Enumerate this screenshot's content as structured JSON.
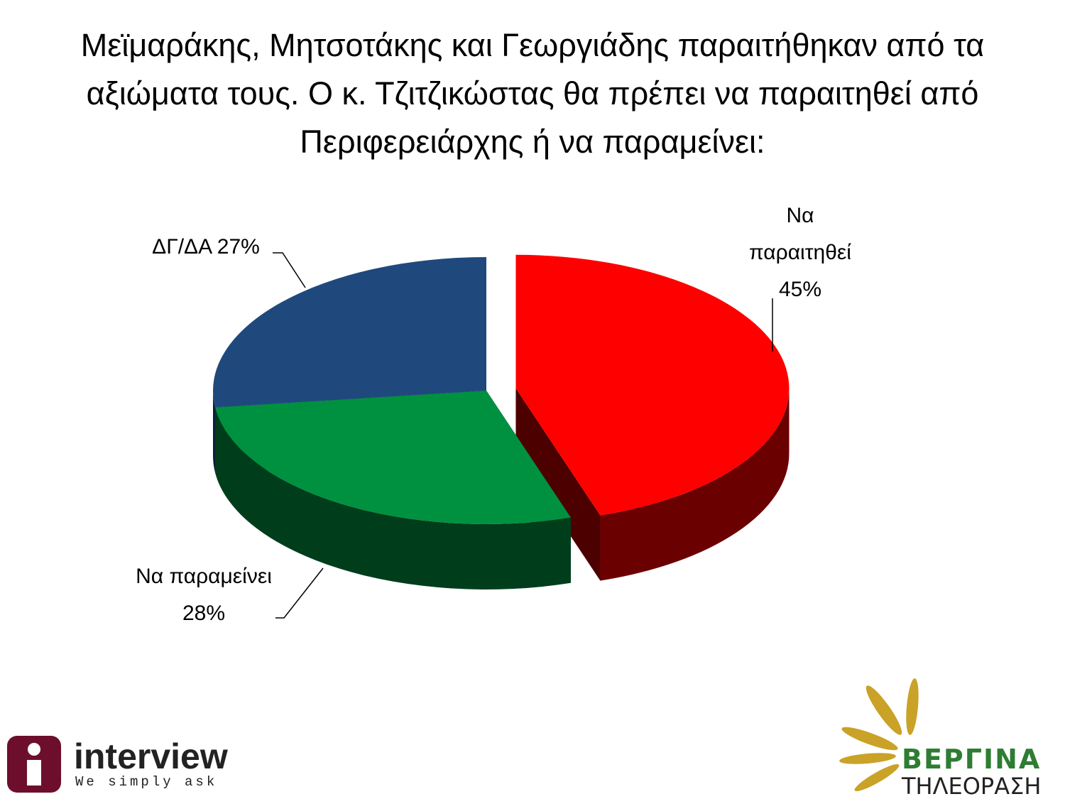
{
  "chart_data": {
    "type": "pie3d",
    "title": "Μεϊμαράκης, Μητσοτάκης και Γεωργιάδης παραιτήθηκαν από τα αξιώματα τους. Ο κ. Τζιτζικώστας θα πρέπει να παραιτηθεί από Περιφερειάρχης ή να παραμείνει:",
    "categories": [
      "Να παραιτηθεί",
      "Να παραμείνει",
      "ΔΓ/ΔΑ"
    ],
    "values": [
      45,
      28,
      27
    ],
    "value_labels": [
      "45%",
      "28%",
      "27%"
    ],
    "colors": [
      "#ff0000",
      "#009140",
      "#1f497d"
    ]
  },
  "footer": {
    "left_logo": "interview",
    "left_tagline": "We simply ask",
    "right_logo": "ΒΕΡΓΙΝΑ",
    "right_tagline": "ΤΗΛΕΟΡΑΣΗ"
  }
}
